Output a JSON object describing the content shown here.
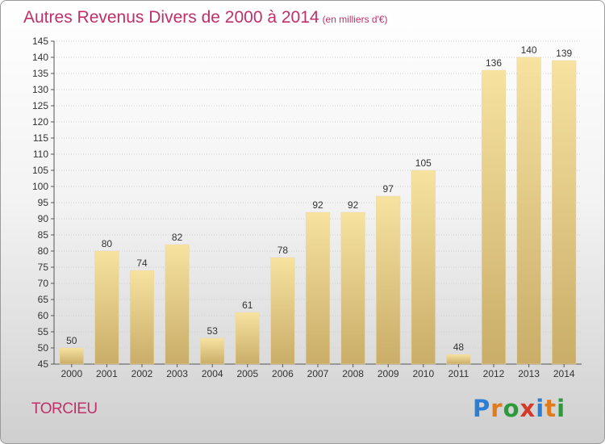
{
  "title": "Autres Revenus Divers de 2000 à 2014",
  "subtitle": "(en milliers d'€)",
  "commune": "TORCIEU",
  "brand": {
    "letters": [
      "P",
      "r",
      "o",
      "x",
      "i",
      "t",
      "i"
    ],
    "colors": [
      "#2a7fd4",
      "#e07a1a",
      "#2a9a3a",
      "#d43a2a",
      "#2a7fd4",
      "#e07a1a",
      "#2a9a3a"
    ]
  },
  "chart_data": {
    "type": "bar",
    "categories": [
      "2000",
      "2001",
      "2002",
      "2003",
      "2004",
      "2005",
      "2006",
      "2007",
      "2008",
      "2009",
      "2010",
      "2011",
      "2012",
      "2013",
      "2014"
    ],
    "values": [
      50,
      80,
      74,
      82,
      53,
      61,
      78,
      92,
      92,
      97,
      105,
      48,
      136,
      140,
      139
    ],
    "ylim": [
      45,
      145
    ],
    "yticks": [
      45,
      50,
      55,
      60,
      65,
      70,
      75,
      80,
      85,
      90,
      95,
      100,
      105,
      110,
      115,
      120,
      125,
      130,
      135,
      140,
      145
    ],
    "grid": true,
    "colors": {
      "bar_light": "#f7e2a0",
      "bar_dark": "#c9ad68",
      "grid": "#cfcfcf",
      "axis": "#555555",
      "text": "#333333"
    }
  }
}
